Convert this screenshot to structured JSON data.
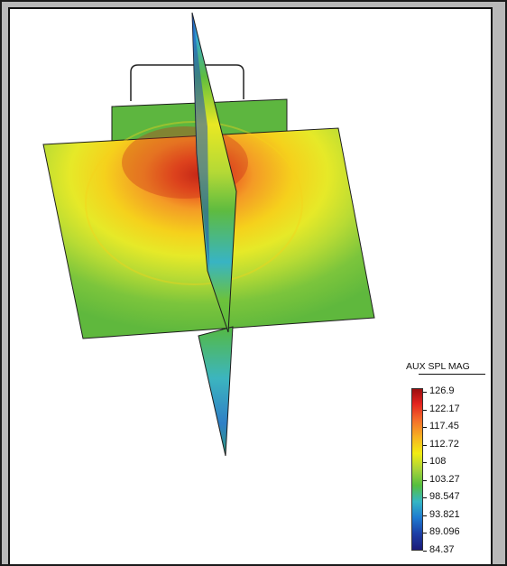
{
  "legend": {
    "title": "AUX SPL MAG",
    "ticks": [
      "126.9",
      "122.17",
      "117.45",
      "112.72",
      "108",
      "103.27",
      "98.547",
      "93.821",
      "89.096",
      "84.37"
    ]
  },
  "colors": {
    "hot": "#cc2a12",
    "orange": "#f08a24",
    "yellow": "#f2e51b",
    "green": "#6ebd3b",
    "cyan": "#3bb4c8",
    "blue": "#1d4fb0"
  }
}
